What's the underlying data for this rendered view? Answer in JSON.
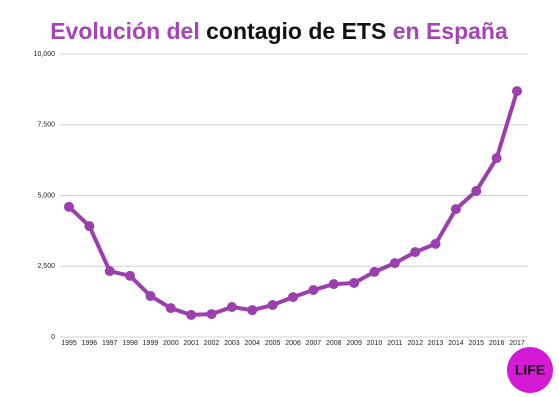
{
  "chart_data": {
    "type": "line",
    "title_parts": [
      "Evolución del",
      "contagio de ETS",
      "en España"
    ],
    "categories": [
      "1995",
      "1996",
      "1997",
      "1998",
      "1999",
      "2000",
      "2001",
      "2002",
      "2003",
      "2004",
      "2005",
      "2006",
      "2007",
      "2008",
      "2009",
      "2010",
      "2011",
      "2012",
      "2013",
      "2014",
      "2015",
      "2016",
      "2017"
    ],
    "values": [
      4600,
      3920,
      2330,
      2160,
      1450,
      1020,
      780,
      810,
      1060,
      950,
      1130,
      1410,
      1660,
      1870,
      1910,
      2300,
      2610,
      3000,
      3290,
      4520,
      5160,
      6320,
      8690
    ],
    "color": "#9c3fae",
    "ylim": [
      0,
      10000
    ],
    "yticks": [
      0,
      {
        "value": 2500,
        "label": "2,500"
      },
      {
        "value": 5000,
        "label": "5,000"
      },
      {
        "value": 7500,
        "label": "7,500"
      },
      {
        "value": 10000,
        "label": "10,000"
      }
    ],
    "grid": true,
    "logo": "LIFE"
  }
}
